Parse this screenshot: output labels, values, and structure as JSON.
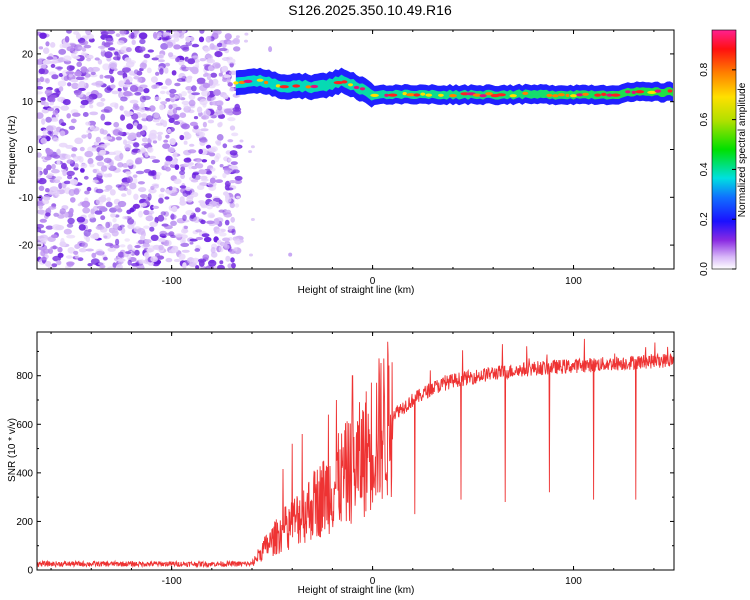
{
  "title": "S126.2025.350.10.49.R16",
  "chart_data": [
    {
      "type": "heatmap",
      "xlabel": "Height of straight line (km)",
      "ylabel": "Frequency (Hz)",
      "xlim": [
        -167,
        150
      ],
      "ylim": [
        -25,
        25
      ],
      "xticks": [
        -100,
        0,
        100
      ],
      "xtick_labels": [
        "-100",
        "0",
        "100"
      ],
      "yticks": [
        -20,
        -10,
        0,
        10,
        20
      ],
      "ytick_labels": [
        "-20",
        "-10",
        "0",
        "10",
        "20"
      ],
      "noise_region_x": [
        -167,
        -68
      ],
      "signal_start_x": -68,
      "signal_ridge": {
        "x": [
          -68,
          -60,
          -52,
          -45,
          -38,
          -30,
          -22,
          -15,
          -10,
          -5,
          0,
          20,
          40,
          60,
          80,
          100,
          110,
          120,
          130,
          140,
          150
        ],
        "y": [
          14,
          14.5,
          14,
          13,
          13.5,
          13,
          13.5,
          14.5,
          13.5,
          12.5,
          11.5,
          11.5,
          11.5,
          11.5,
          11.5,
          11.5,
          11.5,
          11.5,
          12,
          12,
          12
        ]
      },
      "colorbar": {
        "label": "Normalized spectral amplitude",
        "ticks": [
          0.0,
          0.2,
          0.4,
          0.6,
          0.8
        ],
        "tick_labels": [
          "0.0",
          "0.2",
          "0.4",
          "0.6",
          "0.8"
        ],
        "range": [
          0,
          0.96
        ]
      }
    },
    {
      "type": "line",
      "xlabel": "Height of straight line (km)",
      "ylabel": "SNR (10 * v/v)",
      "xlim": [
        -167,
        150
      ],
      "ylim": [
        0,
        980
      ],
      "xticks": [
        -100,
        0,
        100
      ],
      "xtick_labels": [
        "-100",
        "0",
        "100"
      ],
      "yticks": [
        0,
        200,
        400,
        600,
        800
      ],
      "ytick_labels": [
        "0",
        "200",
        "400",
        "600",
        "800"
      ],
      "line_color": "#ee3333",
      "envelope": {
        "x": [
          -167,
          -60,
          -55,
          -45,
          -35,
          -25,
          -15,
          -5,
          0,
          10,
          20,
          30,
          40,
          60,
          80,
          100,
          120,
          140,
          150
        ],
        "y": [
          25,
          25,
          80,
          160,
          230,
          300,
          380,
          460,
          540,
          640,
          700,
          750,
          780,
          810,
          830,
          840,
          850,
          860,
          865
        ]
      },
      "spikes_up": [
        {
          "x": -40,
          "y": 520
        },
        {
          "x": -35,
          "y": 560
        },
        {
          "x": -22,
          "y": 640
        },
        {
          "x": -18,
          "y": 700
        },
        {
          "x": -10,
          "y": 800
        }
      ],
      "dips": [
        {
          "x": 21,
          "y": 230
        },
        {
          "x": 44,
          "y": 290
        },
        {
          "x": 66,
          "y": 280
        },
        {
          "x": 88,
          "y": 320
        },
        {
          "x": 110,
          "y": 290
        },
        {
          "x": 131,
          "y": 290
        }
      ]
    }
  ]
}
